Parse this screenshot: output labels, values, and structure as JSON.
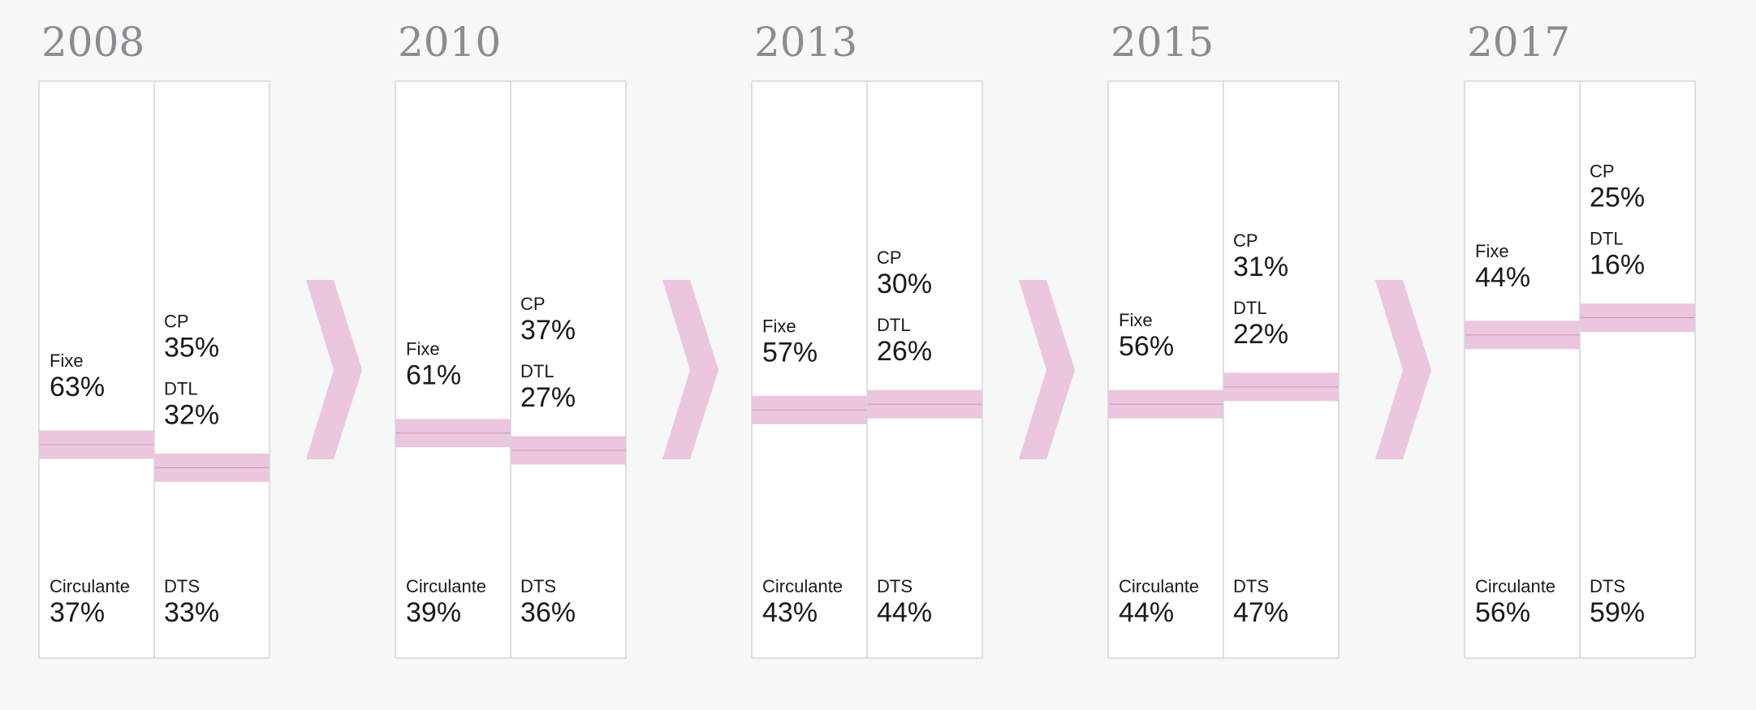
{
  "chart_data": {
    "type": "bar",
    "colors": {
      "background": "#f6f7f7",
      "panel": "#ffffff",
      "border": "#d4d6da",
      "band": "#ebc6de",
      "band_line": "#c895b7",
      "arrow": "#ebc6de",
      "year_text": "#8a8c90",
      "text": "#1a1a1a"
    },
    "arrow_icon": "chevron-right-icon",
    "periods": [
      {
        "year": "2008",
        "assets": {
          "top_label": "Fixe",
          "top_value": "63%",
          "bottom_label": "Circulante",
          "bottom_value": "37%",
          "split": 63
        },
        "liabilities": {
          "cp_label": "CP",
          "cp_value": "35%",
          "dtl_label": "DTL",
          "dtl_value": "32%",
          "bottom_label": "DTS",
          "bottom_value": "33%",
          "split": 67
        }
      },
      {
        "year": "2010",
        "assets": {
          "top_label": "Fixe",
          "top_value": "61%",
          "bottom_label": "Circulante",
          "bottom_value": "39%",
          "split": 61
        },
        "liabilities": {
          "cp_label": "CP",
          "cp_value": "37%",
          "dtl_label": "DTL",
          "dtl_value": "27%",
          "bottom_label": "DTS",
          "bottom_value": "36%",
          "split": 64
        }
      },
      {
        "year": "2013",
        "assets": {
          "top_label": "Fixe",
          "top_value": "57%",
          "bottom_label": "Circulante",
          "bottom_value": "43%",
          "split": 57
        },
        "liabilities": {
          "cp_label": "CP",
          "cp_value": "30%",
          "dtl_label": "DTL",
          "dtl_value": "26%",
          "bottom_label": "DTS",
          "bottom_value": "44%",
          "split": 56
        }
      },
      {
        "year": "2015",
        "assets": {
          "top_label": "Fixe",
          "top_value": "56%",
          "bottom_label": "Circulante",
          "bottom_value": "44%",
          "split": 56
        },
        "liabilities": {
          "cp_label": "CP",
          "cp_value": "31%",
          "dtl_label": "DTL",
          "dtl_value": "22%",
          "bottom_label": "DTS",
          "bottom_value": "47%",
          "split": 53
        }
      },
      {
        "year": "2017",
        "assets": {
          "top_label": "Fixe",
          "top_value": "44%",
          "bottom_label": "Circulante",
          "bottom_value": "56%",
          "split": 44
        },
        "liabilities": {
          "cp_label": "CP",
          "cp_value": "25%",
          "dtl_label": "DTL",
          "dtl_value": "16%",
          "bottom_label": "DTS",
          "bottom_value": "59%",
          "split": 41
        }
      }
    ]
  }
}
